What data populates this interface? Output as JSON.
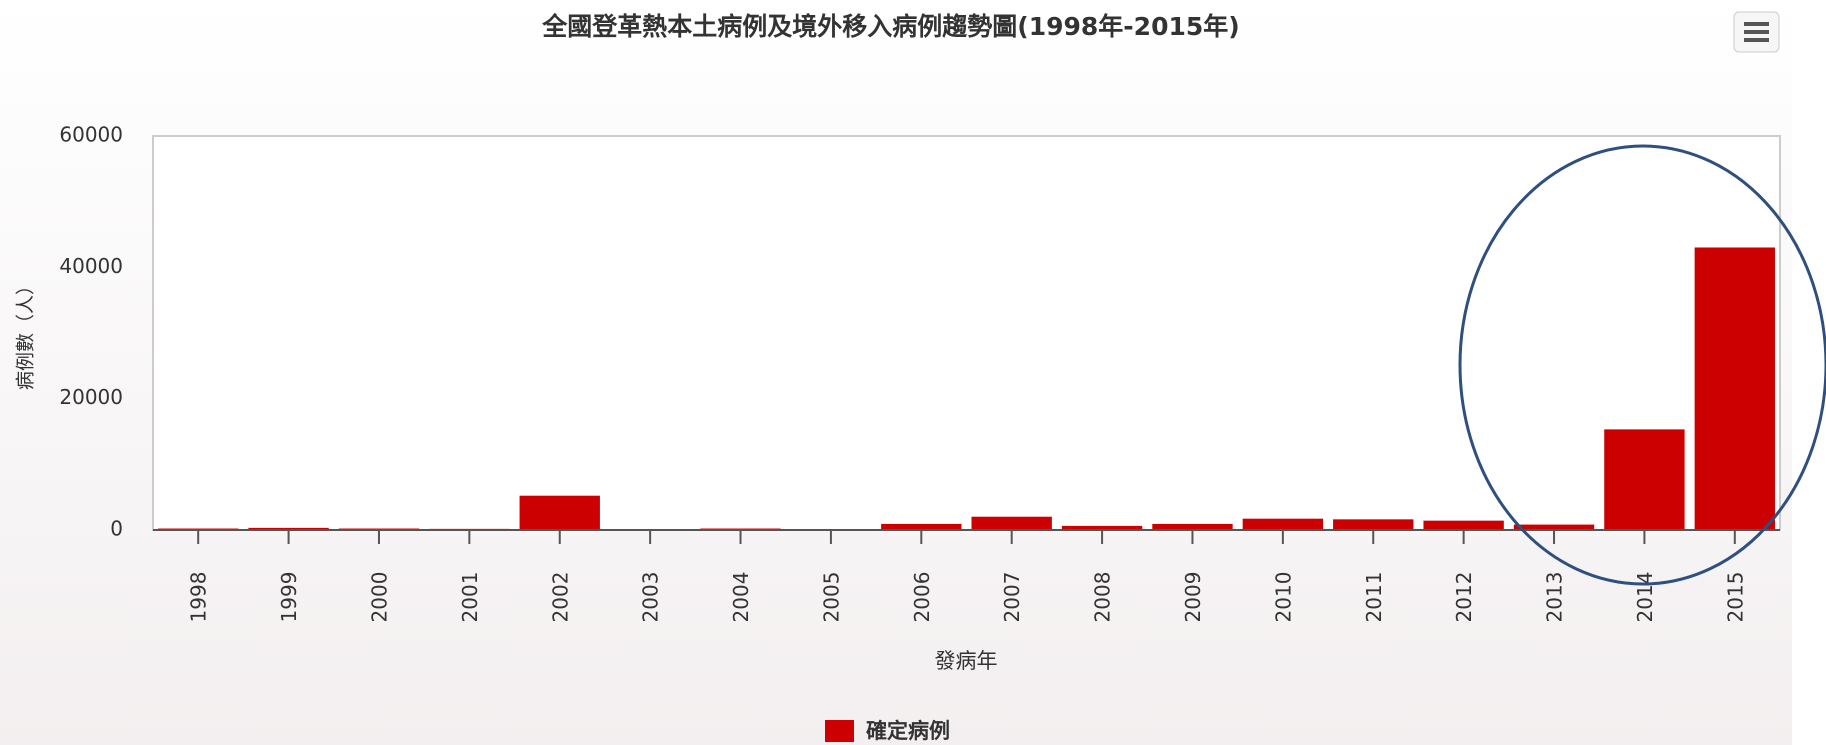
{
  "chart_data": {
    "type": "bar",
    "title": "全國登革熱本土病例及境外移入病例趨勢圖(1998年-2015年)",
    "x_label": "發病年",
    "y_label": "病例數（人）",
    "categories": [
      "1998",
      "1999",
      "2000",
      "2001",
      "2002",
      "2003",
      "2004",
      "2005",
      "2006",
      "2007",
      "2008",
      "2009",
      "2010",
      "2011",
      "2012",
      "2013",
      "2014",
      "2015"
    ],
    "series": [
      {
        "name": "確定病例",
        "color": "#cc0000",
        "values": [
          300,
          400,
          300,
          250,
          5300,
          150,
          300,
          200,
          1000,
          2100,
          700,
          1000,
          1800,
          1700,
          1500,
          900,
          15400,
          43100
        ]
      }
    ],
    "ylim": [
      0,
      60000
    ],
    "yticks": [
      0,
      20000,
      40000,
      60000
    ],
    "grid": false
  }
}
